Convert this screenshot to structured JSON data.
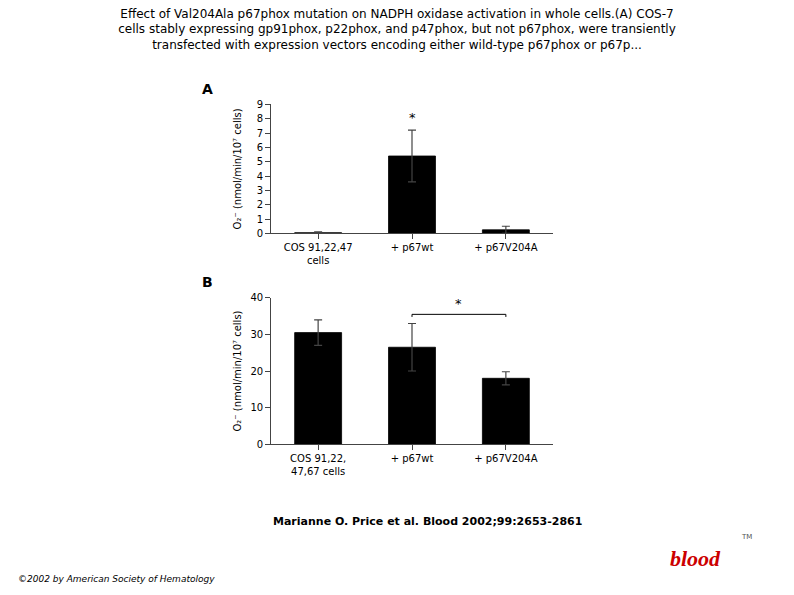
{
  "title": "Effect of Val204Ala p67phox mutation on NADPH oxidase activation in whole cells.(A) COS-7\ncells stably expressing gp91phox, p22phox, and p47phox, but not p67phox, were transiently\ntransfected with expression vectors encoding either wild-type p67phox or p67p...",
  "chart_data": [
    {
      "type": "bar",
      "title": "A",
      "categories": [
        "COS 91,22,47\ncells",
        "+ p67wt",
        "+ p67V204A"
      ],
      "values": [
        0.05,
        5.4,
        0.25
      ],
      "errors": [
        0.05,
        1.8,
        0.25
      ],
      "color": "#000000",
      "ylabel": "O₂⁻ (nmol/min/10⁷ cells)",
      "ylim": [
        0,
        9
      ],
      "yticks": [
        0,
        1,
        2,
        3,
        4,
        5,
        6,
        7,
        8,
        9
      ],
      "grid": false,
      "annotations": [
        {
          "text": "*",
          "x": 1,
          "y": 7.4
        }
      ]
    },
    {
      "type": "bar",
      "title": "B",
      "categories": [
        "COS 91,22,\n47,67 cells",
        "+ p67wt",
        "+ p67V204A"
      ],
      "values": [
        30.5,
        26.5,
        18.0
      ],
      "errors": [
        3.5,
        6.5,
        1.8
      ],
      "color": "#000000",
      "ylabel": "O₂⁻ (nmol/min/10⁷ cells)",
      "ylim": [
        0,
        40
      ],
      "yticks": [
        0,
        10,
        20,
        30,
        40
      ],
      "grid": false,
      "annotations": [
        {
          "text": "*",
          "bracket": [
            1,
            2
          ],
          "y": 35.5
        }
      ]
    }
  ],
  "annotations": [
    {
      "text": "Marianne O. Price et al. Blood 2002;99:2653-2861"
    },
    {
      "text": "©2002 by American Society of Hematology"
    },
    {
      "text": "blood",
      "color": "#cc0000"
    },
    {
      "text": "TM"
    }
  ]
}
